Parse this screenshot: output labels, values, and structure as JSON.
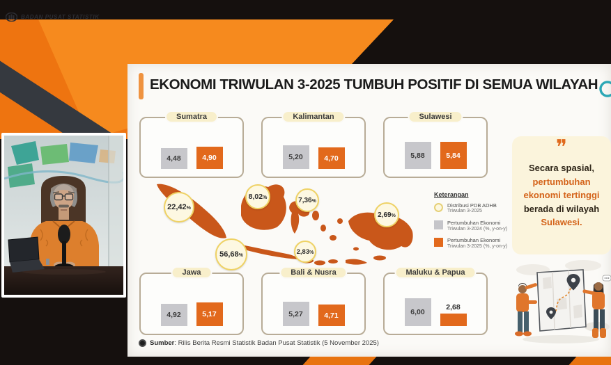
{
  "brand": {
    "logo_text": "BADAN PUSAT STATISTIK"
  },
  "slide": {
    "title": "EKONOMI TRIWULAN 3-2025  TUMBUH POSITIF DI SEMUA WILAYAH",
    "percent_symbol": "%",
    "regions": [
      {
        "name": "Sumatra",
        "prev": "4,48",
        "curr": "4,90",
        "prev_val": 4.48,
        "curr_val": 4.9
      },
      {
        "name": "Kalimantan",
        "prev": "5,20",
        "curr": "4,70",
        "prev_val": 5.2,
        "curr_val": 4.7
      },
      {
        "name": "Sulawesi",
        "prev": "5,88",
        "curr": "5,84",
        "prev_val": 5.88,
        "curr_val": 5.84
      },
      {
        "name": "Jawa",
        "prev": "4,92",
        "curr": "5,17",
        "prev_val": 4.92,
        "curr_val": 5.17
      },
      {
        "name": "Bali & Nusra",
        "prev": "5,27",
        "curr": "4,71",
        "prev_val": 5.27,
        "curr_val": 4.71
      },
      {
        "name": "Maluku & Papua",
        "prev": "6,00",
        "curr": "2,68",
        "prev_val": 6.0,
        "curr_val": 2.68
      }
    ],
    "map_shares": [
      {
        "region": "Sumatra",
        "label": "22,42"
      },
      {
        "region": "Kalimantan",
        "label": "8,02"
      },
      {
        "region": "Sulawesi",
        "label": "7,36"
      },
      {
        "region": "Maluku & Papua",
        "label": "2,69"
      },
      {
        "region": "Jawa",
        "label": "56,68"
      },
      {
        "region": "Bali & Nusra",
        "label": "2,83"
      }
    ],
    "legend": {
      "title": "Keterangan",
      "items": [
        {
          "swatch": "circle-icon",
          "line1": "Distribusi PDB ADHB",
          "line2": "Triwulan 3-2025"
        },
        {
          "swatch": "gray-square",
          "line1": "Pertumbuhan Ekonomi",
          "line2": "Triwulan 3-2024 (%, y-on-y)"
        },
        {
          "swatch": "orange-square",
          "line1": "Pertumbuhan Ekonomi",
          "line2": "Triwulan 3-2025 (%, y-on-y)"
        }
      ]
    },
    "quote": {
      "lines": [
        {
          "text": "Secara spasial,",
          "accent": false
        },
        {
          "text": "pertumbuhan",
          "accent": true
        },
        {
          "text": "ekonomi tertinggi",
          "accent": true
        },
        {
          "text": "berada di wilayah",
          "accent": false
        },
        {
          "text": "Sulawesi.",
          "accent": true
        }
      ]
    },
    "source": {
      "label": "Sumber",
      "text": ": Rilis Berita Resmi Statistik Badan Pusat Statistik (5 November 2025)"
    }
  },
  "colors": {
    "brand_orange": "#ee7410",
    "bar_orange": "#e2691c",
    "bar_gray": "#c7c7cb",
    "map_orange": "#c9571a",
    "cream_panel": "#fbf4dc",
    "badge_border": "#efd264",
    "quote_accent": "#d4631a"
  }
}
